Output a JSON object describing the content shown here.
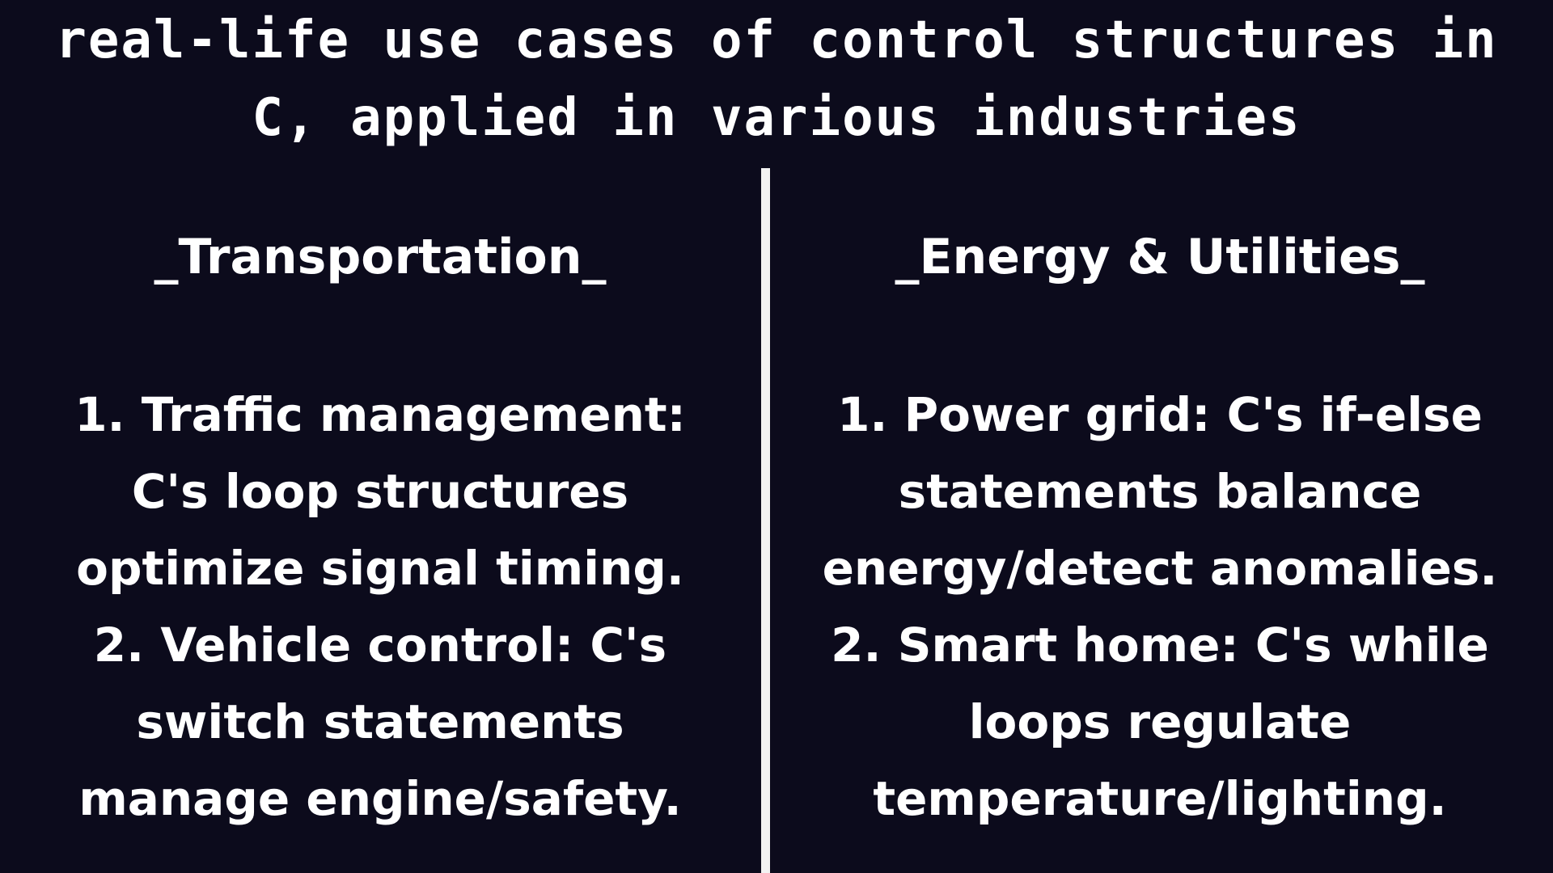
{
  "title": {
    "line1": "real-life use cases of control structures in",
    "line2": "C, applied in various industries"
  },
  "left_column": {
    "heading": "_Transportation_",
    "lines": [
      "1. Traffic management:",
      "C's loop structures",
      "optimize signal timing.",
      "2. Vehicle control: C's",
      "switch statements",
      "manage engine/safety."
    ]
  },
  "right_column": {
    "heading": "_Energy & Utilities_",
    "lines": [
      "1. Power grid: C's if-else",
      "statements balance",
      "energy/detect anomalies.",
      "2. Smart home: C's while",
      "loops regulate",
      "temperature/lighting."
    ]
  }
}
